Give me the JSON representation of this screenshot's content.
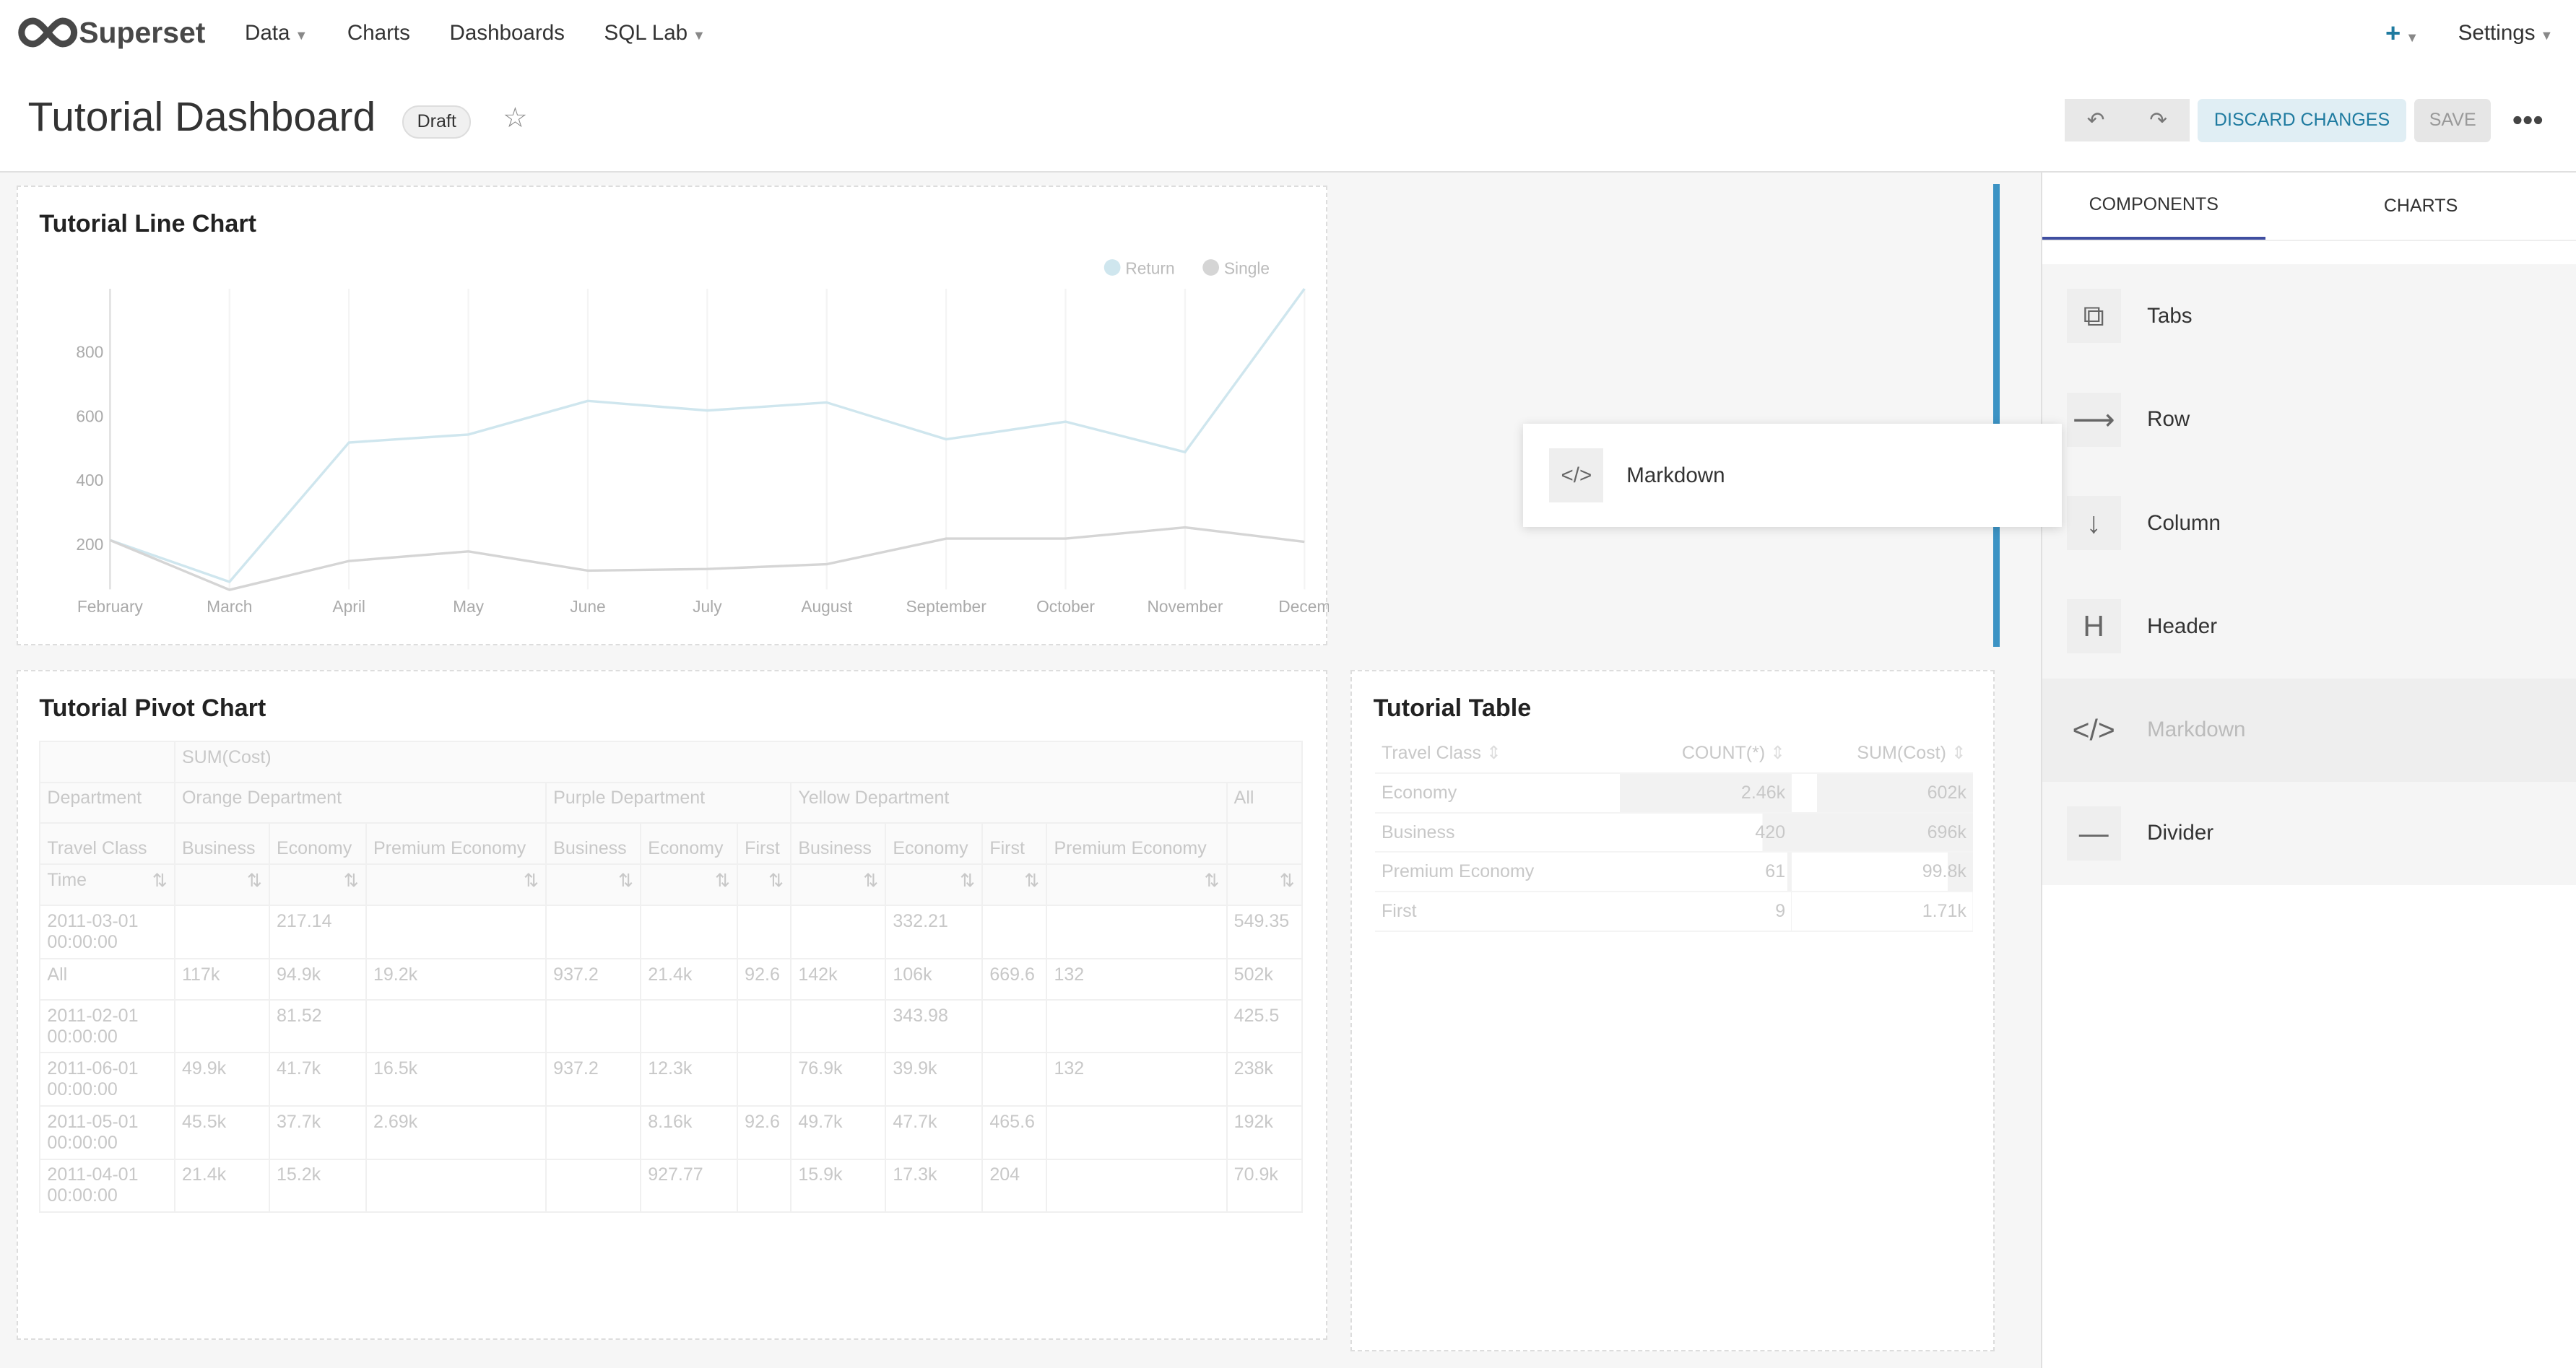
{
  "nav": {
    "brand": "Superset",
    "items": [
      "Data",
      "Charts",
      "Dashboards",
      "SQL Lab"
    ],
    "plus": "+",
    "settings": "Settings"
  },
  "header": {
    "title": "Tutorial Dashboard",
    "badge": "Draft",
    "discard": "DISCARD CHANGES",
    "save": "SAVE",
    "more": "•••"
  },
  "line_chart": {
    "title": "Tutorial Line Chart",
    "chart_data": {
      "type": "line",
      "x": [
        "February",
        "March",
        "April",
        "May",
        "June",
        "July",
        "August",
        "September",
        "October",
        "November",
        "Decem"
      ],
      "yticks": [
        200,
        400,
        600,
        800
      ],
      "ylim": [
        0,
        1000
      ],
      "legend_position": "top-right",
      "series": [
        {
          "name": "Return",
          "color": "#cfe6ee",
          "values": [
            215,
            85,
            520,
            545,
            650,
            620,
            645,
            530,
            585,
            490,
            1000
          ]
        },
        {
          "name": "Single",
          "color": "#d5d5d5",
          "values": [
            215,
            60,
            150,
            180,
            120,
            125,
            140,
            220,
            220,
            255,
            210
          ]
        }
      ]
    }
  },
  "pivot": {
    "title": "Tutorial Pivot Chart",
    "metric": "SUM(Cost)",
    "dept_label": "Department",
    "depts": [
      {
        "name": "Orange Department",
        "span": 3
      },
      {
        "name": "Purple Department",
        "span": 3
      },
      {
        "name": "Yellow Department",
        "span": 4
      },
      {
        "name": "All",
        "span": 1
      }
    ],
    "class_label": "Travel Class",
    "classes": [
      "Business",
      "Economy",
      "Premium Economy",
      "Business",
      "Economy",
      "First",
      "Business",
      "Economy",
      "First",
      "Premium Economy",
      ""
    ],
    "time_label": "Time",
    "rows": [
      [
        "2011-03-01 00:00:00",
        "",
        "217.14",
        "",
        "",
        "",
        "",
        "",
        "332.21",
        "",
        "",
        "549.35"
      ],
      [
        "All",
        "117k",
        "94.9k",
        "19.2k",
        "937.2",
        "21.4k",
        "92.6",
        "142k",
        "106k",
        "669.6",
        "132",
        "502k"
      ],
      [
        "2011-02-01 00:00:00",
        "",
        "81.52",
        "",
        "",
        "",
        "",
        "",
        "343.98",
        "",
        "",
        "425.5"
      ],
      [
        "2011-06-01 00:00:00",
        "49.9k",
        "41.7k",
        "16.5k",
        "937.2",
        "12.3k",
        "",
        "76.9k",
        "39.9k",
        "",
        "132",
        "238k"
      ],
      [
        "2011-05-01 00:00:00",
        "45.5k",
        "37.7k",
        "2.69k",
        "",
        "8.16k",
        "92.6",
        "49.7k",
        "47.7k",
        "465.6",
        "",
        "192k"
      ],
      [
        "2011-04-01 00:00:00",
        "21.4k",
        "15.2k",
        "",
        "",
        "927.77",
        "",
        "15.9k",
        "17.3k",
        "204",
        "",
        "70.9k"
      ]
    ]
  },
  "table": {
    "title": "Tutorial Table",
    "columns": [
      "Travel Class",
      "COUNT(*)",
      "SUM(Cost)"
    ],
    "rows": [
      [
        "Economy",
        "2.46k",
        "602k"
      ],
      [
        "Business",
        "420",
        "696k"
      ],
      [
        "Premium Economy",
        "61",
        "99.8k"
      ],
      [
        "First",
        "9",
        "1.71k"
      ]
    ],
    "count_frac": [
      1,
      0.17,
      0.025,
      0.004
    ],
    "sum_frac": [
      0.86,
      1,
      0.14,
      0.002
    ]
  },
  "sidebar": {
    "tabs": [
      "COMPONENTS",
      "CHARTS"
    ],
    "components": [
      {
        "label": "Tabs",
        "icon": "tabs-icon",
        "glyph": "⧉"
      },
      {
        "label": "Row",
        "icon": "arrow-right-icon",
        "glyph": "⟶"
      },
      {
        "label": "Column",
        "icon": "arrow-down-icon",
        "glyph": "↓"
      },
      {
        "label": "Header",
        "icon": "header-icon",
        "glyph": "H"
      },
      {
        "label": "Markdown",
        "icon": "code-icon",
        "glyph": "</>"
      },
      {
        "label": "Divider",
        "icon": "divider-icon",
        "glyph": "—"
      }
    ]
  },
  "drag": {
    "label": "Markdown",
    "glyph": "</>"
  }
}
